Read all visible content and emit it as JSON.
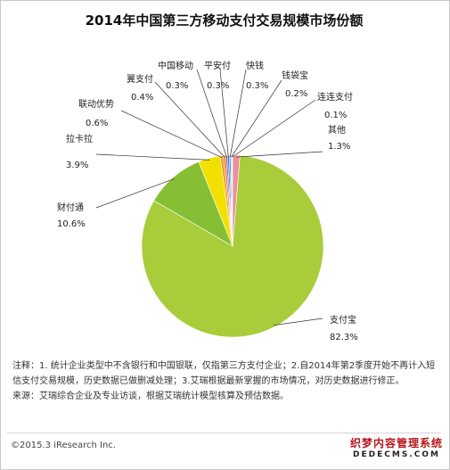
{
  "chart_data": {
    "type": "pie",
    "title": "2014年中国第三方移动支付交易规模市场份额",
    "slices": [
      {
        "name": "支付宝",
        "value": 82.3,
        "label": "82.3%",
        "color": "#a9cc3a"
      },
      {
        "name": "财付通",
        "value": 10.6,
        "label": "10.6%",
        "color": "#86bf34"
      },
      {
        "name": "拉卡拉",
        "value": 3.9,
        "label": "3.9%",
        "color": "#f2e000"
      },
      {
        "name": "联动优势",
        "value": 0.6,
        "label": "0.6%",
        "color": "#f0a030"
      },
      {
        "name": "翼支付",
        "value": 0.4,
        "label": "0.4%",
        "color": "#e97432"
      },
      {
        "name": "中国移动",
        "value": 0.3,
        "label": "0.3%",
        "color": "#8e5aa6"
      },
      {
        "name": "平安付",
        "value": 0.3,
        "label": "0.3%",
        "color": "#3f6fb8"
      },
      {
        "name": "快钱",
        "value": 0.3,
        "label": "0.3%",
        "color": "#4fa7d6"
      },
      {
        "name": "钱袋宝",
        "value": 0.2,
        "label": "0.2%",
        "color": "#77c4d6"
      },
      {
        "name": "连连支付",
        "value": 0.1,
        "label": "0.1%",
        "color": "#d9d9d9"
      },
      {
        "name": "其他",
        "value": 1.3,
        "label": "1.3%",
        "color": "#f08f9b"
      }
    ]
  },
  "notes": {
    "line1": "注释：1. 统计企业类型中不含银行和中国银联，仅指第三方支付企业；2.自2014年第2季度开始不再计入短信支付交易规模，历史数据已做删减处理；3.艾瑞根据最新掌握的市场情况，对历史数据进行修正。",
    "line2": "来源：艾瑞综合企业及专业访谈，根据艾瑞统计模型核算及预估数据。"
  },
  "footer": {
    "copyright": "©2015.3 iResearch Inc.",
    "watermark": "织梦内容管理系统",
    "watermark_en": "DEDECMS.COM"
  }
}
